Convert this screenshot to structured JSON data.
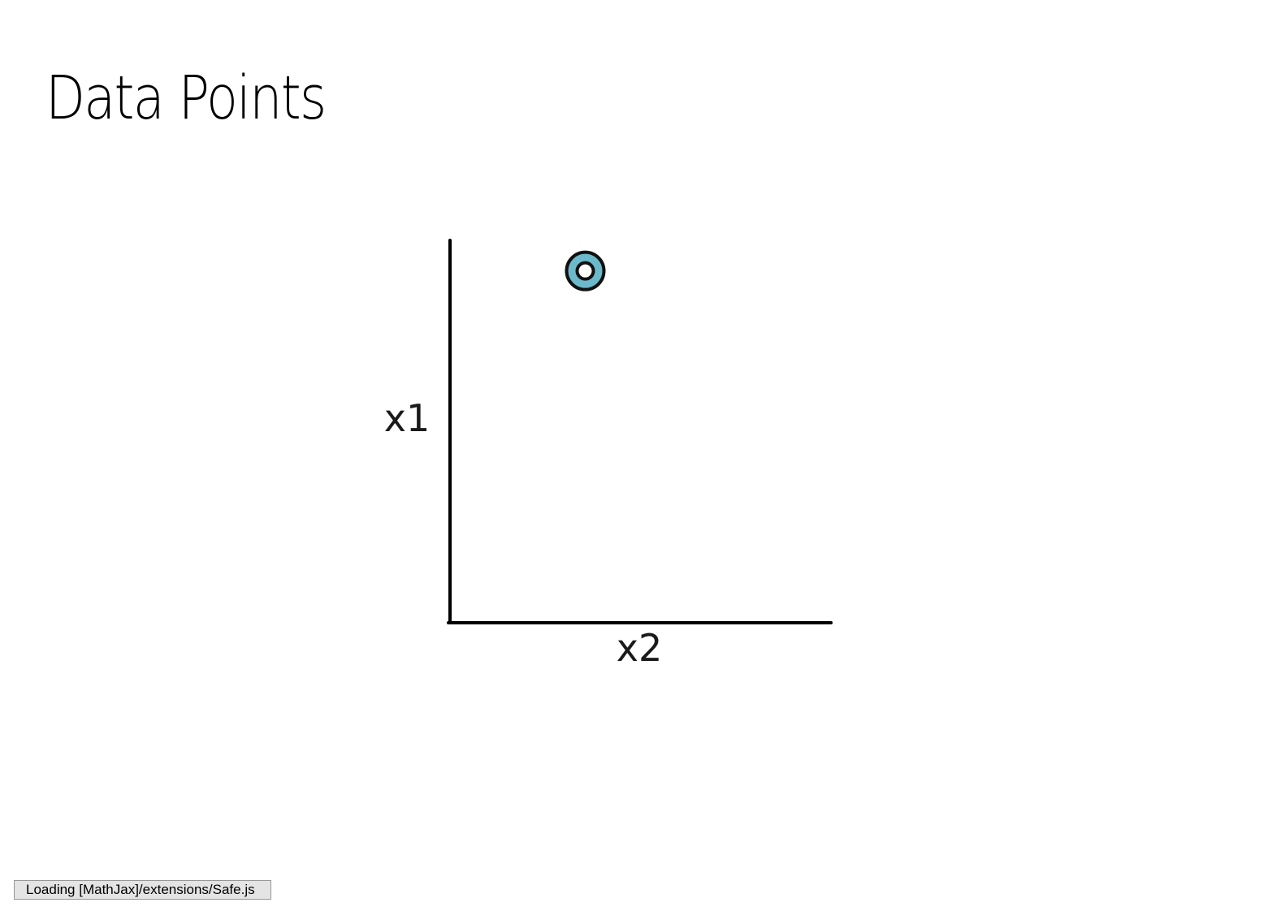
{
  "slide": {
    "title": "Data Points"
  },
  "figure": {
    "x_axis_label": "x2",
    "y_axis_label": "x1",
    "point_fill_color": "#6cb9cb",
    "point_stroke_color": "#111111",
    "axis_color": "#000000"
  },
  "chart_data": {
    "type": "scatter",
    "xlabel": "x2",
    "ylabel": "x1",
    "xlim": [
      0,
      10
    ],
    "ylim": [
      0,
      10
    ],
    "grid": false,
    "points": [
      {
        "x": 3.55,
        "y": 9.2
      }
    ]
  },
  "status": {
    "message": "Loading [MathJax]/extensions/Safe.js"
  }
}
